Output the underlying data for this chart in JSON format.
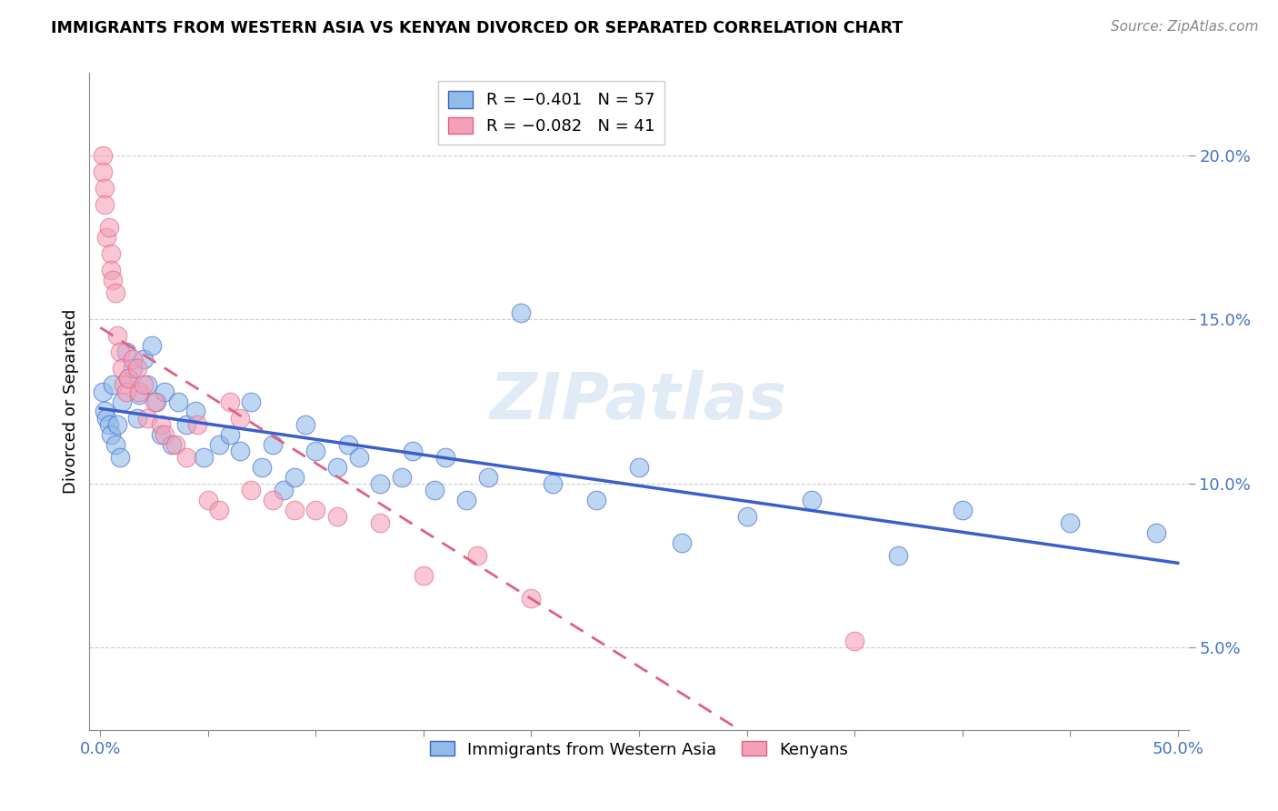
{
  "title": "IMMIGRANTS FROM WESTERN ASIA VS KENYAN DIVORCED OR SEPARATED CORRELATION CHART",
  "source": "Source: ZipAtlas.com",
  "ylabel": "Divorced or Separated",
  "xlim": [
    -0.005,
    0.505
  ],
  "ylim": [
    0.025,
    0.225
  ],
  "x_tick_positions": [
    0.0,
    0.05,
    0.1,
    0.15,
    0.2,
    0.25,
    0.3,
    0.35,
    0.4,
    0.45,
    0.5
  ],
  "x_tick_labels": [
    "0.0%",
    "",
    "",
    "",
    "",
    "",
    "",
    "",
    "",
    "",
    "50.0%"
  ],
  "y_tick_positions": [
    0.05,
    0.1,
    0.15,
    0.2
  ],
  "y_tick_labels": [
    "5.0%",
    "10.0%",
    "15.0%",
    "20.0%"
  ],
  "legend_blue_label": "R = −0.401   N = 57",
  "legend_pink_label": "R = −0.082   N = 41",
  "bottom_legend_blue": "Immigrants from Western Asia",
  "bottom_legend_pink": "Kenyans",
  "blue_color": "#92bce8",
  "pink_color": "#f4a0b8",
  "blue_line_color": "#3a5fcd",
  "pink_line_color": "#e06080",
  "tick_color": "#4472c4",
  "watermark": "ZIPatlas",
  "blue_scatter_x": [
    0.001,
    0.002,
    0.003,
    0.004,
    0.005,
    0.006,
    0.007,
    0.008,
    0.009,
    0.01,
    0.012,
    0.013,
    0.015,
    0.017,
    0.018,
    0.02,
    0.022,
    0.024,
    0.026,
    0.028,
    0.03,
    0.033,
    0.036,
    0.04,
    0.044,
    0.048,
    0.055,
    0.06,
    0.065,
    0.07,
    0.075,
    0.08,
    0.085,
    0.09,
    0.095,
    0.1,
    0.11,
    0.115,
    0.12,
    0.13,
    0.14,
    0.145,
    0.155,
    0.16,
    0.17,
    0.18,
    0.195,
    0.21,
    0.23,
    0.25,
    0.27,
    0.3,
    0.33,
    0.37,
    0.4,
    0.45,
    0.49
  ],
  "blue_scatter_y": [
    0.128,
    0.122,
    0.12,
    0.118,
    0.115,
    0.13,
    0.112,
    0.118,
    0.108,
    0.125,
    0.14,
    0.132,
    0.135,
    0.12,
    0.127,
    0.138,
    0.13,
    0.142,
    0.125,
    0.115,
    0.128,
    0.112,
    0.125,
    0.118,
    0.122,
    0.108,
    0.112,
    0.115,
    0.11,
    0.125,
    0.105,
    0.112,
    0.098,
    0.102,
    0.118,
    0.11,
    0.105,
    0.112,
    0.108,
    0.1,
    0.102,
    0.11,
    0.098,
    0.108,
    0.095,
    0.102,
    0.152,
    0.1,
    0.095,
    0.105,
    0.082,
    0.09,
    0.095,
    0.078,
    0.092,
    0.088,
    0.085
  ],
  "pink_scatter_x": [
    0.001,
    0.001,
    0.002,
    0.002,
    0.003,
    0.004,
    0.005,
    0.005,
    0.006,
    0.007,
    0.008,
    0.009,
    0.01,
    0.011,
    0.012,
    0.013,
    0.015,
    0.017,
    0.018,
    0.02,
    0.022,
    0.025,
    0.028,
    0.03,
    0.035,
    0.04,
    0.045,
    0.05,
    0.055,
    0.06,
    0.065,
    0.07,
    0.08,
    0.09,
    0.1,
    0.11,
    0.13,
    0.15,
    0.175,
    0.2,
    0.35
  ],
  "pink_scatter_y": [
    0.2,
    0.195,
    0.19,
    0.185,
    0.175,
    0.178,
    0.17,
    0.165,
    0.162,
    0.158,
    0.145,
    0.14,
    0.135,
    0.13,
    0.128,
    0.132,
    0.138,
    0.135,
    0.128,
    0.13,
    0.12,
    0.125,
    0.118,
    0.115,
    0.112,
    0.108,
    0.118,
    0.095,
    0.092,
    0.125,
    0.12,
    0.098,
    0.095,
    0.092,
    0.092,
    0.09,
    0.088,
    0.072,
    0.078,
    0.065,
    0.052
  ]
}
